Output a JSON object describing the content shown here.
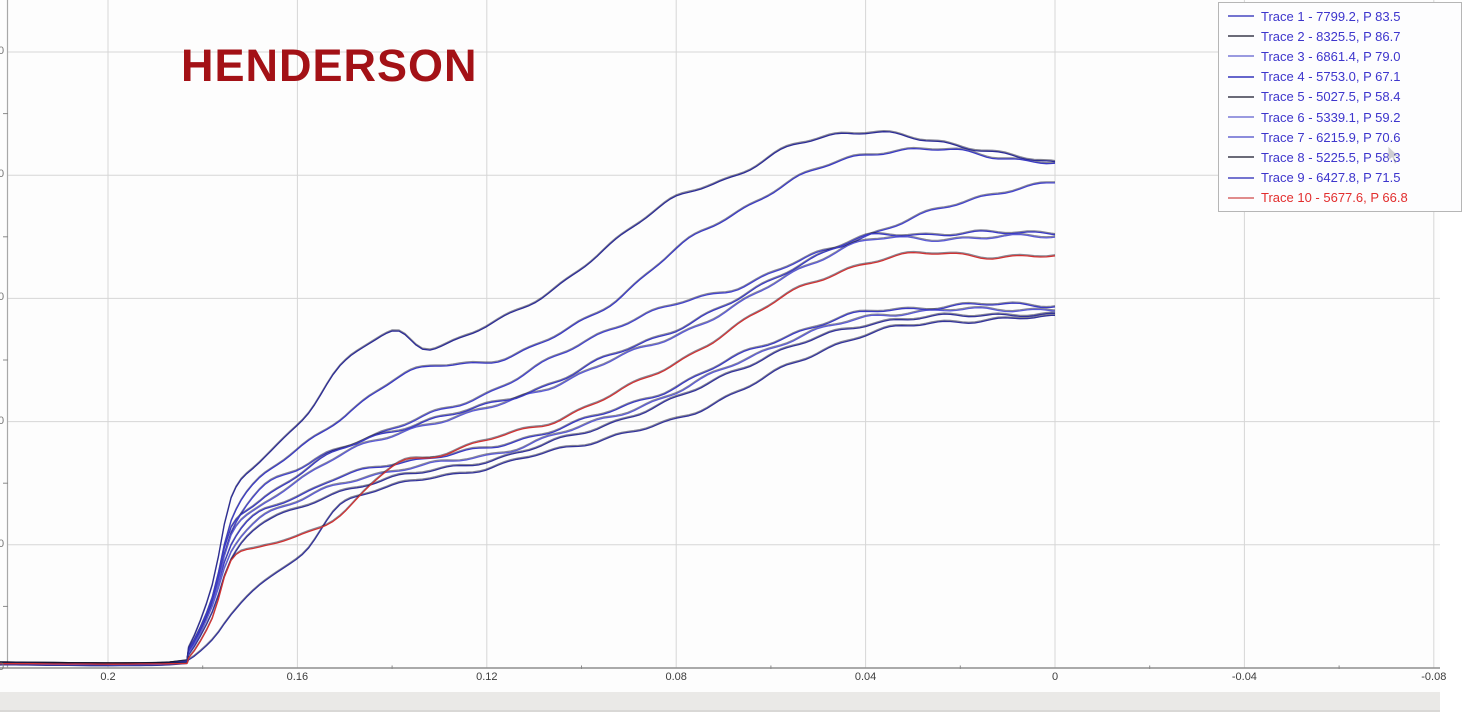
{
  "title": {
    "text": "HENDERSON",
    "color": "#a31116"
  },
  "axes": {
    "x": {
      "tick_labels": [
        "0.2",
        "0.16",
        "0.12",
        "0.08",
        "0.04",
        "0",
        "-0.04",
        "-0.08"
      ],
      "tick_values": [
        0.2,
        0.16,
        0.12,
        0.08,
        0.04,
        0,
        -0.04,
        -0.08
      ],
      "reversed": true
    },
    "y": {
      "visible_partial_labels": [
        "0",
        "0",
        "0",
        "0",
        "0",
        "0"
      ],
      "labels_clipped": true
    }
  },
  "colors": {
    "grid": "#d6d6d6",
    "axis": "#8f8f8f",
    "legend_border": "#b6b6b6",
    "plot_background": "#fdfdfd",
    "bottom_bar": "#eae9e7",
    "title_red": "#a31116"
  },
  "chart_data": {
    "type": "line",
    "title": "HENDERSON",
    "xlabel": "",
    "ylabel": "",
    "x_tick_labels": [
      "0.2",
      "0.16",
      "0.12",
      "0.08",
      "0.04",
      "0",
      "-0.04",
      "-0.08"
    ],
    "x_tick_values": [
      0.2,
      0.16,
      0.12,
      0.08,
      0.04,
      0,
      -0.04,
      -0.08
    ],
    "x_axis_reversed": true,
    "xlim": [
      0.223,
      -0.081
    ],
    "ylim": [
      0,
      10860
    ],
    "y_gridline_interval": 2000,
    "grid": true,
    "legend_position": "top-right",
    "x": [
      0.223,
      0.187,
      0.183,
      0.178,
      0.174,
      0.168,
      0.159,
      0.151,
      0.14,
      0.132,
      0.119,
      0.107,
      0.094,
      0.08,
      0.067,
      0.054,
      0.04,
      0.026,
      0.012,
      0.0
    ],
    "series": [
      {
        "name": "Trace 1 - 7799.2, P 83.5",
        "line_color": "#3a3ac4",
        "swatch_color": "#7474d0",
        "text_color": "#3d35cc",
        "values": [
          80,
          80,
          290,
          1140,
          2410,
          3090,
          3580,
          4030,
          4680,
          4880,
          4980,
          5330,
          5900,
          6800,
          7400,
          7970,
          8330,
          8420,
          8290,
          8200
        ]
      },
      {
        "name": "Trace 2 - 8325.5, P 86.7",
        "line_color": "#2c2c96",
        "swatch_color": "#6b6b78",
        "text_color": "#3d35cc",
        "values": [
          80,
          80,
          330,
          1350,
          2730,
          3350,
          4030,
          4880,
          5450,
          5200,
          5580,
          6100,
          6850,
          7660,
          7980,
          8540,
          8680,
          8570,
          8340,
          8210
        ]
      },
      {
        "name": "Trace 3 - 6861.4, P 79.0",
        "line_color": "#4343cc",
        "swatch_color": "#9a9ae0",
        "text_color": "#3d35cc",
        "values": [
          80,
          80,
          260,
          1060,
          2210,
          2890,
          3250,
          3580,
          3870,
          4110,
          4490,
          4980,
          5500,
          5900,
          6180,
          6600,
          7010,
          7400,
          7720,
          7870
        ]
      },
      {
        "name": "Trace 4 - 5753.0, P 67.1",
        "line_color": "#3a3ac4",
        "swatch_color": "#6666cc",
        "text_color": "#3d35cc",
        "values": [
          80,
          80,
          290,
          1070,
          2000,
          2540,
          2810,
          3090,
          3320,
          3410,
          3580,
          3840,
          4160,
          4570,
          5060,
          5460,
          5770,
          5850,
          5900,
          5890
        ]
      },
      {
        "name": "Trace 5 - 5027.5, P 58.4",
        "line_color": "#33339b",
        "swatch_color": "#6b6b78",
        "text_color": "#3d35cc",
        "values": [
          70,
          70,
          130,
          460,
          860,
          1350,
          1840,
          2650,
          2940,
          3090,
          3250,
          3510,
          3740,
          4030,
          4490,
          4980,
          5420,
          5590,
          5660,
          5690
        ]
      },
      {
        "name": "Trace 6 - 5339.1, P 59.2",
        "line_color": "#5b5bd6",
        "swatch_color": "#9a9ae0",
        "text_color": "#3d35cc",
        "values": [
          70,
          70,
          240,
          990,
          1890,
          2440,
          2730,
          2980,
          3200,
          3300,
          3460,
          3740,
          4070,
          4470,
          4960,
          5370,
          5690,
          5790,
          5820,
          5810
        ]
      },
      {
        "name": "Trace 7 - 6215.9, P 70.6",
        "line_color": "#5b5bd6",
        "swatch_color": "#8c8cdc",
        "text_color": "#3d35cc",
        "values": [
          70,
          70,
          240,
          1020,
          2160,
          2600,
          3090,
          3460,
          3760,
          3970,
          4230,
          4550,
          4980,
          5400,
          5890,
          6470,
          6930,
          6960,
          6990,
          7010
        ]
      },
      {
        "name": "Trace 8 - 5225.5, P 58.3",
        "line_color": "#33339b",
        "swatch_color": "#6b6b78",
        "text_color": "#3d35cc",
        "values": [
          50,
          50,
          210,
          910,
          1760,
          2330,
          2600,
          2860,
          3090,
          3190,
          3380,
          3640,
          3970,
          4370,
          4850,
          5250,
          5580,
          5690,
          5740,
          5720
        ]
      },
      {
        "name": "Trace 9 - 6427.8, P 71.5",
        "line_color": "#3a3ac4",
        "swatch_color": "#7474d0",
        "text_color": "#3d35cc",
        "values": [
          80,
          80,
          280,
          1110,
          2280,
          2700,
          3190,
          3540,
          3840,
          4030,
          4280,
          4600,
          5060,
          5500,
          5980,
          6550,
          6990,
          7040,
          7060,
          7070
        ]
      },
      {
        "name": "Trace 10 - 5677.6, P 66.8",
        "line_color": "#d03232",
        "swatch_color": "#e08c8c",
        "text_color": "#e22e2e",
        "values": [
          70,
          70,
          160,
          810,
          1760,
          1950,
          2160,
          2490,
          3270,
          3410,
          3740,
          3950,
          4440,
          4930,
          5580,
          6150,
          6570,
          6730,
          6670,
          6680
        ]
      }
    ]
  }
}
